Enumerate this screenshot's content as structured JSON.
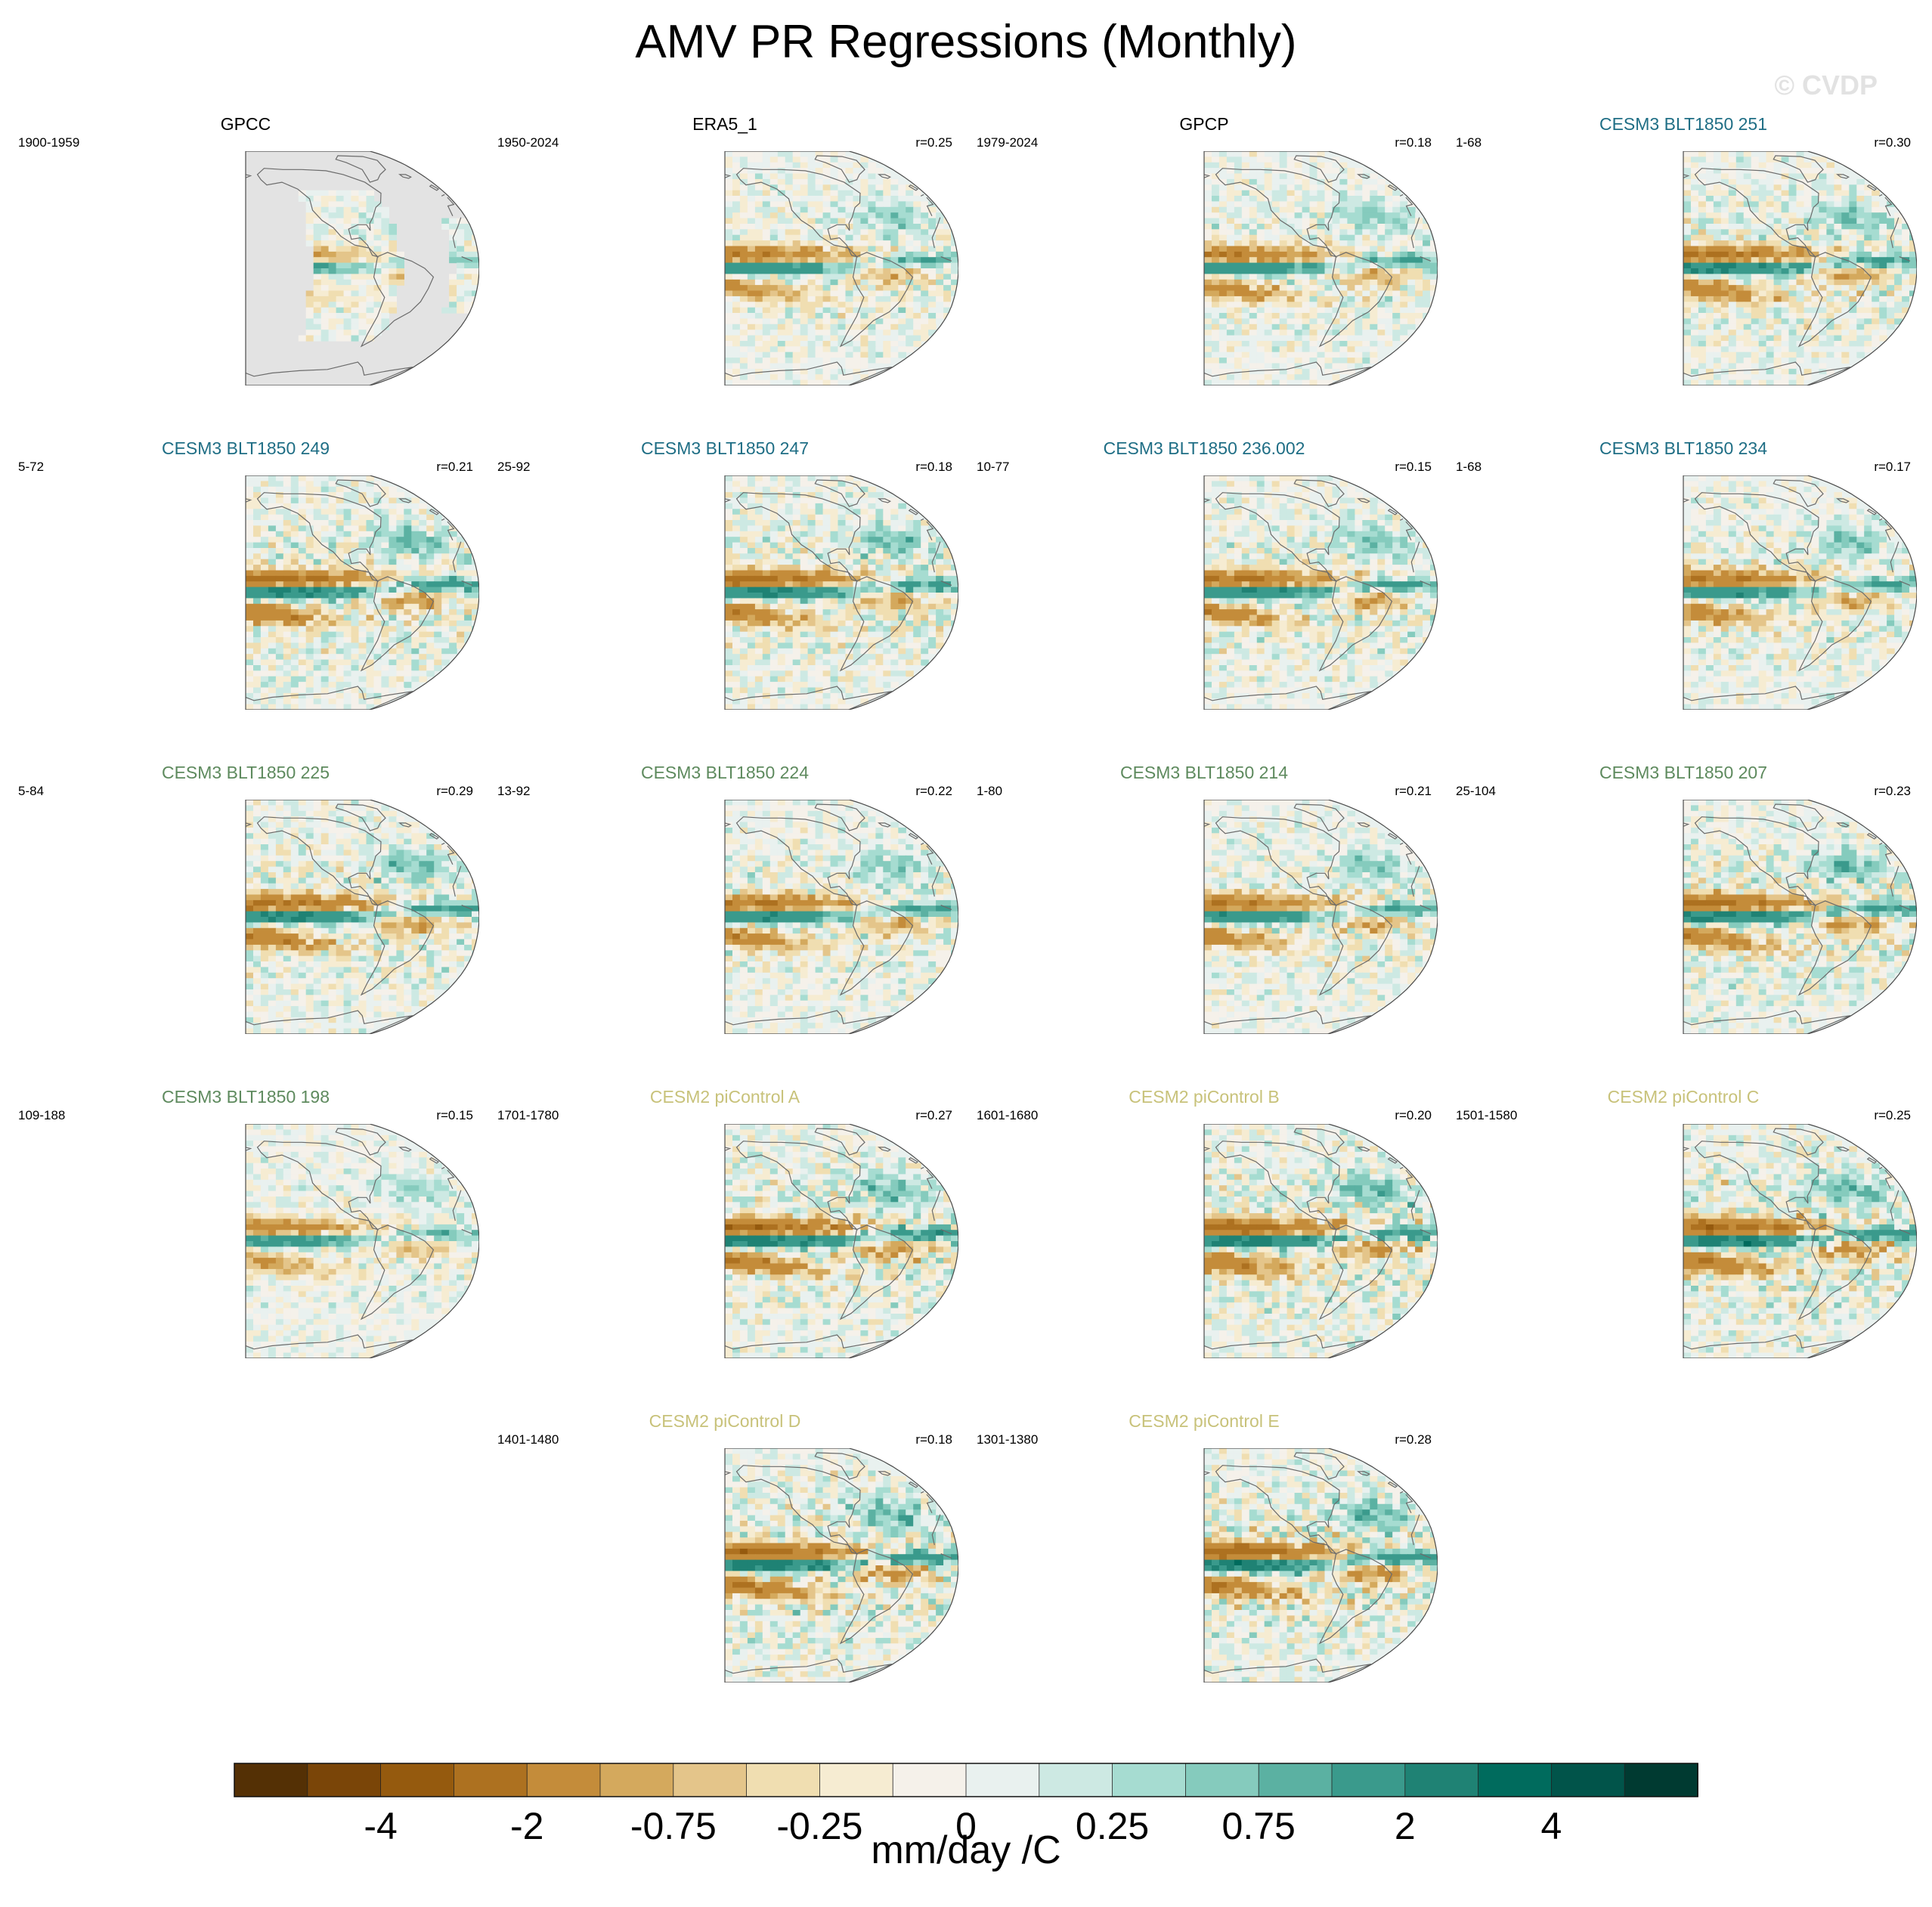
{
  "title": "AMV PR Regressions (Monthly)",
  "watermark": "© CVDP",
  "colors": {
    "land": "#e3e3e3",
    "coast": "#6b6b6b",
    "outline": "#4a4a4a",
    "title_obs": "#000000",
    "title_cesm3_a": "#1f6e85",
    "title_cesm3_b": "#5e8a5e",
    "title_cesm2": "#c8c27a"
  },
  "panels": [
    {
      "name": "GPCC",
      "years": "1900-1959",
      "r": "",
      "color_key": "title_obs",
      "mask": true,
      "strength": 0.55,
      "seed": 3
    },
    {
      "name": "ERA5_1",
      "years": "1950-2024",
      "r": "r=0.25",
      "color_key": "title_obs",
      "mask": false,
      "strength": 0.75,
      "seed": 7
    },
    {
      "name": "GPCP",
      "years": "1979-2024",
      "r": "r=0.18",
      "color_key": "title_obs",
      "mask": false,
      "strength": 0.8,
      "seed": 11
    },
    {
      "name": "CESM3 BLT1850 251",
      "years": "1-68",
      "r": "r=0.30",
      "color_key": "title_cesm3_a",
      "mask": false,
      "strength": 0.95,
      "seed": 13
    },
    {
      "name": "CESM3 BLT1850 249",
      "years": "5-72",
      "r": "r=0.21",
      "color_key": "title_cesm3_a",
      "mask": false,
      "strength": 1.05,
      "seed": 17
    },
    {
      "name": "CESM3 BLT1850 247",
      "years": "25-92",
      "r": "r=0.18",
      "color_key": "title_cesm3_a",
      "mask": false,
      "strength": 1.0,
      "seed": 19
    },
    {
      "name": "CESM3 BLT1850 236.002",
      "years": "10-77",
      "r": "r=0.15",
      "color_key": "title_cesm3_a",
      "mask": false,
      "strength": 0.9,
      "seed": 23
    },
    {
      "name": "CESM3 BLT1850 234",
      "years": "1-68",
      "r": "r=0.17",
      "color_key": "title_cesm3_a",
      "mask": false,
      "strength": 0.85,
      "seed": 29
    },
    {
      "name": "CESM3 BLT1850 225",
      "years": "5-84",
      "r": "r=0.29",
      "color_key": "title_cesm3_b",
      "mask": false,
      "strength": 1.0,
      "seed": 31
    },
    {
      "name": "CESM3 BLT1850 224",
      "years": "13-92",
      "r": "r=0.22",
      "color_key": "title_cesm3_b",
      "mask": false,
      "strength": 0.85,
      "seed": 37
    },
    {
      "name": "CESM3 BLT1850 214",
      "years": "1-80",
      "r": "r=0.21",
      "color_key": "title_cesm3_b",
      "mask": false,
      "strength": 0.8,
      "seed": 41
    },
    {
      "name": "CESM3 BLT1850 207",
      "years": "25-104",
      "r": "r=0.23",
      "color_key": "title_cesm3_b",
      "mask": false,
      "strength": 1.05,
      "seed": 43
    },
    {
      "name": "CESM3 BLT1850 198",
      "years": "109-188",
      "r": "r=0.15",
      "color_key": "title_cesm3_b",
      "mask": false,
      "strength": 0.65,
      "seed": 47
    },
    {
      "name": "CESM2 piControl A",
      "years": "1701-1780",
      "r": "r=0.27",
      "color_key": "title_cesm2",
      "mask": false,
      "strength": 1.15,
      "seed": 53
    },
    {
      "name": "CESM2 piControl B",
      "years": "1601-1680",
      "r": "r=0.20",
      "color_key": "title_cesm2",
      "mask": false,
      "strength": 1.15,
      "seed": 59
    },
    {
      "name": "CESM2 piControl C",
      "years": "1501-1580",
      "r": "r=0.25",
      "color_key": "title_cesm2",
      "mask": false,
      "strength": 1.2,
      "seed": 61
    },
    {
      "name": "CESM2 piControl D",
      "years": "1401-1480",
      "r": "r=0.18",
      "color_key": "title_cesm2",
      "mask": false,
      "strength": 1.15,
      "seed": 67
    },
    {
      "name": "CESM2 piControl E",
      "years": "1301-1380",
      "r": "r=0.28",
      "color_key": "title_cesm2",
      "mask": false,
      "strength": 1.15,
      "seed": 71
    }
  ],
  "chart_data": {
    "type": "heatmap",
    "title": "AMV PR Regressions (Monthly)",
    "projection": "Robinson, Pacific-centered",
    "units": "mm/day /C",
    "colorbar": {
      "levels": [
        -5,
        -4,
        -3,
        -2,
        -1,
        -0.75,
        -0.5,
        -0.25,
        -0.1,
        0,
        0.1,
        0.25,
        0.5,
        0.75,
        1,
        2,
        3,
        4,
        5
      ],
      "tick_labels": [
        "-4",
        "-2",
        "-0.75",
        "-0.25",
        "0",
        "0.25",
        "0.75",
        "2",
        "4"
      ],
      "tick_values": [
        -4,
        -2,
        -0.75,
        -0.25,
        0,
        0.25,
        0.75,
        2,
        4
      ],
      "colors": [
        "#543005",
        "#7a4508",
        "#955a0e",
        "#ad7120",
        "#c48c3a",
        "#d4a95d",
        "#e4c58a",
        "#f0deb1",
        "#f6ecd2",
        "#f5f1ea",
        "#e9f1ef",
        "#cde9e3",
        "#a6dcd1",
        "#85cbbd",
        "#5bb1a2",
        "#3a9a8c",
        "#1f8274",
        "#006b5d",
        "#01544a",
        "#003a31"
      ]
    }
  }
}
